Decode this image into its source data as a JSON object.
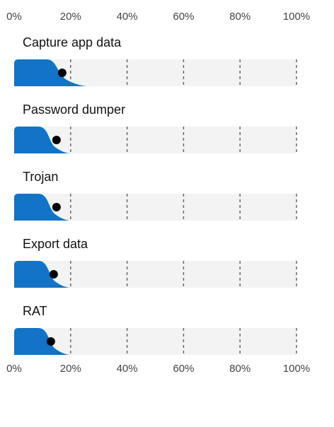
{
  "chart_data": {
    "type": "area",
    "x_ticks": [
      "0%",
      "20%",
      "40%",
      "60%",
      "80%",
      "100%"
    ],
    "xlim": [
      0,
      100
    ],
    "grid": true,
    "series": [
      {
        "name": "Capture app data",
        "marker": 17,
        "shoulder": 14,
        "tail_end": 26
      },
      {
        "name": "Password dumper",
        "marker": 15,
        "shoulder": 11,
        "tail_end": 20
      },
      {
        "name": "Trojan",
        "marker": 15,
        "shoulder": 11,
        "tail_end": 20
      },
      {
        "name": "Export data",
        "marker": 14,
        "shoulder": 11,
        "tail_end": 20
      },
      {
        "name": "RAT",
        "marker": 13,
        "shoulder": 11,
        "tail_end": 20
      }
    ]
  },
  "colors": {
    "fill": "#1273c7",
    "track": "#f3f3f3",
    "grid": "#666666",
    "marker": "#000000"
  }
}
